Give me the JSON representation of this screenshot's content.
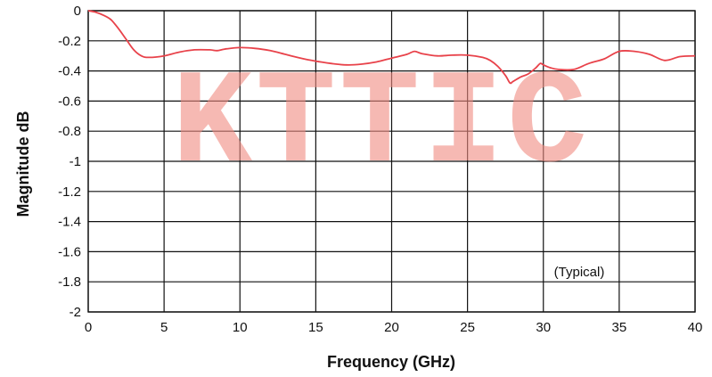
{
  "chart_data": {
    "type": "line",
    "xlabel": "Frequency (GHz)",
    "ylabel": "Magnitude dB",
    "xlim": [
      0,
      40
    ],
    "ylim": [
      -2,
      0
    ],
    "x_ticks": [
      0,
      5,
      10,
      15,
      20,
      25,
      30,
      35,
      40
    ],
    "y_ticks": [
      0,
      -0.2,
      -0.4,
      -0.6,
      -0.8,
      -1,
      -1.2,
      -1.4,
      -1.6,
      -1.8,
      -2
    ],
    "y_tick_labels": [
      "0",
      "-0.2",
      "-0.4",
      "-0.6",
      "-0.8",
      "-1",
      "-1.2",
      "-1.4",
      "-1.6",
      "-1.8",
      "-2"
    ],
    "annotation": "(Typical)",
    "grid": true,
    "series": [
      {
        "color": "#e8424a",
        "x": [
          0,
          0.5,
          1,
          1.5,
          2,
          2.5,
          3,
          3.5,
          4,
          5,
          6,
          7,
          8,
          8.5,
          9,
          10,
          11,
          12,
          13,
          14,
          15,
          16,
          17,
          18,
          19,
          20,
          21,
          21.5,
          22,
          23,
          24,
          25,
          26,
          26.5,
          27,
          27.5,
          27.8,
          28,
          28.5,
          29,
          29.5,
          29.8,
          30,
          30.5,
          31,
          32,
          33,
          34,
          35,
          36,
          37,
          38,
          39,
          40
        ],
        "y": [
          0,
          -0.01,
          -0.03,
          -0.06,
          -0.12,
          -0.19,
          -0.26,
          -0.3,
          -0.31,
          -0.3,
          -0.275,
          -0.26,
          -0.26,
          -0.265,
          -0.255,
          -0.245,
          -0.25,
          -0.265,
          -0.29,
          -0.315,
          -0.335,
          -0.35,
          -0.36,
          -0.355,
          -0.34,
          -0.315,
          -0.29,
          -0.27,
          -0.285,
          -0.3,
          -0.295,
          -0.295,
          -0.31,
          -0.33,
          -0.37,
          -0.43,
          -0.48,
          -0.47,
          -0.44,
          -0.42,
          -0.38,
          -0.35,
          -0.36,
          -0.38,
          -0.39,
          -0.39,
          -0.35,
          -0.32,
          -0.27,
          -0.27,
          -0.29,
          -0.33,
          -0.305,
          -0.3
        ]
      }
    ],
    "watermark": "KTTIC"
  }
}
